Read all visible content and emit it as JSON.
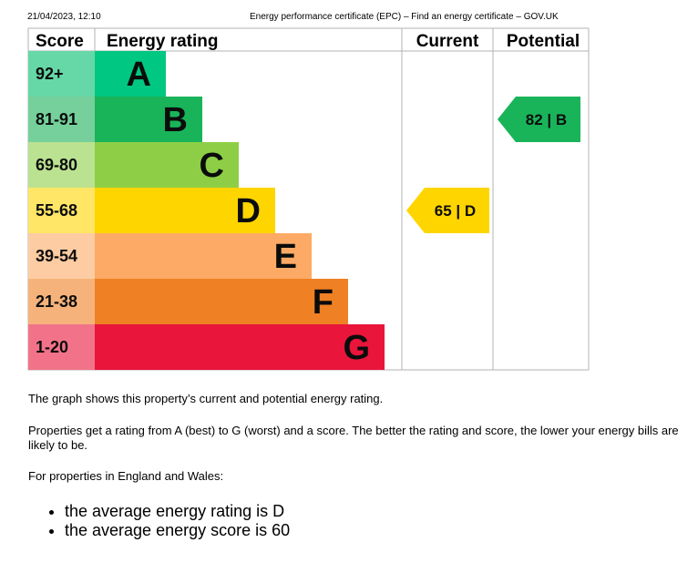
{
  "header": {
    "timestamp": "21/04/2023, 12:10",
    "title": "Energy performance certificate (EPC) – Find an energy certificate – GOV.UK"
  },
  "chart_data": {
    "type": "bar",
    "columns": {
      "score": "Score",
      "rating": "Energy rating",
      "current": "Current",
      "potential": "Potential"
    },
    "bands": [
      {
        "letter": "A",
        "range": "92+",
        "color": "#00c781",
        "range_bg": "#66d8a7"
      },
      {
        "letter": "B",
        "range": "81-91",
        "color": "#19b459",
        "range_bg": "#75d09b"
      },
      {
        "letter": "C",
        "range": "69-80",
        "color": "#8dce46",
        "range_bg": "#bbe290"
      },
      {
        "letter": "D",
        "range": "55-68",
        "color": "#ffd500",
        "range_bg": "#ffe666"
      },
      {
        "letter": "E",
        "range": "39-54",
        "color": "#fcaa65",
        "range_bg": "#fdcca2"
      },
      {
        "letter": "F",
        "range": "21-38",
        "color": "#ef8023",
        "range_bg": "#f5b37b"
      },
      {
        "letter": "G",
        "range": "1-20",
        "color": "#e9153b",
        "range_bg": "#f27389"
      }
    ],
    "current": {
      "score": 65,
      "band": "D",
      "label": "65 | D",
      "color": "#ffd500"
    },
    "potential": {
      "score": 82,
      "band": "B",
      "label": "82 | B",
      "color": "#19b459"
    }
  },
  "text": {
    "p1": "The graph shows this property’s current and potential energy rating.",
    "p2": "Properties get a rating from A (best) to G (worst) and a score. The better the rating and score, the lower your energy bills are likely to be.",
    "p3": "For properties in England and Wales:",
    "avg_items": [
      "the average energy rating is D",
      "the average energy score is 60"
    ]
  }
}
